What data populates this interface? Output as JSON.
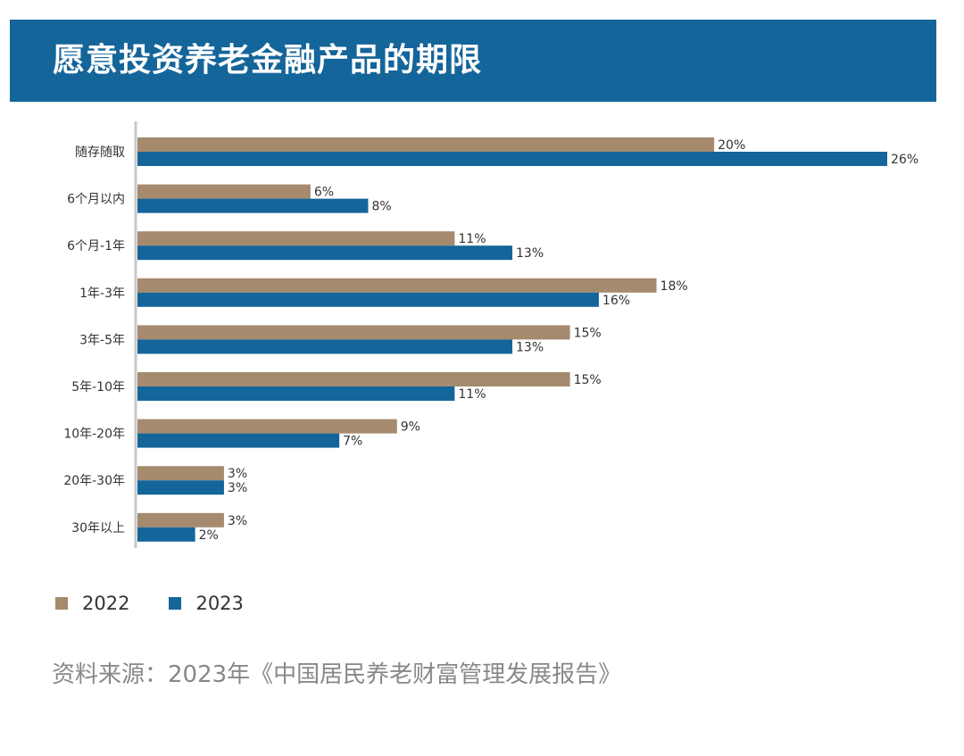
{
  "header": {
    "title": "愿意投资养老金融产品的期限"
  },
  "colors": {
    "header_bg": "#14659a",
    "series_2022": "#a58a6e",
    "series_2023": "#14659a",
    "axis": "#c8c8c8",
    "text": "#333333",
    "source_text": "#888888"
  },
  "chart_data": {
    "type": "bar",
    "orientation": "horizontal",
    "title": "愿意投资养老金融产品的期限",
    "categories": [
      "随存随取",
      "6个月以内",
      "6个月-1年",
      "1年-3年",
      "3年-5年",
      "5年-10年",
      "10年-20年",
      "20年-30年",
      "30年以上"
    ],
    "series": [
      {
        "name": "2022",
        "color": "#a58a6e",
        "values": [
          20,
          6,
          11,
          18,
          15,
          15,
          9,
          3,
          3
        ]
      },
      {
        "name": "2023",
        "color": "#14659a",
        "values": [
          26,
          8,
          13,
          16,
          13,
          11,
          7,
          3,
          2
        ]
      }
    ],
    "value_suffix": "%",
    "xlim": [
      0,
      26
    ],
    "grid": false,
    "legend_position": "bottom-left"
  },
  "legend": [
    {
      "label": "2022",
      "color": "#a58a6e"
    },
    {
      "label": "2023",
      "color": "#14659a"
    }
  ],
  "source": "资料来源：2023年《中国居民养老财富管理发展报告》"
}
